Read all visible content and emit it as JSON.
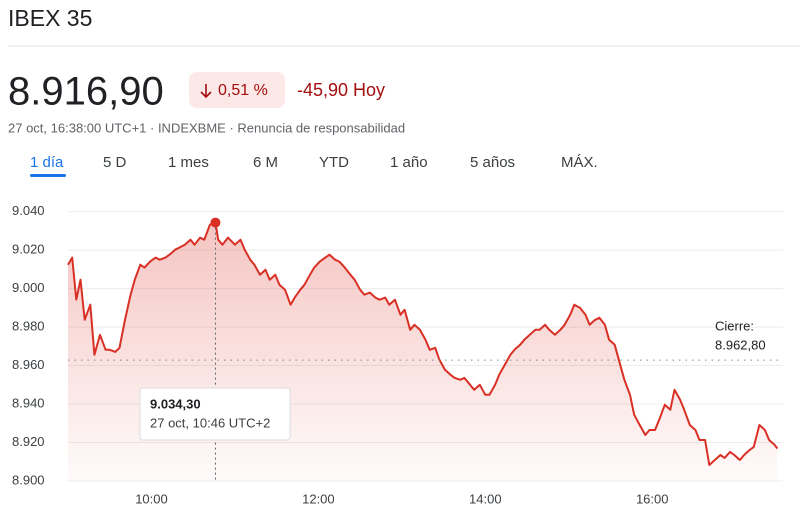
{
  "header": {
    "title": "IBEX 35",
    "price": "8.916,90",
    "change_pct": "0,51 %",
    "change_abs": "-45,90 Hoy",
    "subtitle": "27 oct, 16:38:00 UTC+1 · INDEXBME · Renuncia de responsabilidad"
  },
  "tabs": [
    "1 día",
    "5 D",
    "1 mes",
    "6 M",
    "YTD",
    "1 año",
    "5 años",
    "MÁX."
  ],
  "chart_data": {
    "type": "line",
    "x": [
      540,
      543,
      546,
      549,
      552,
      556,
      559,
      563,
      567,
      570,
      574,
      577,
      581,
      585,
      588,
      592,
      595,
      599,
      603,
      606,
      610,
      613,
      617,
      620,
      624,
      628,
      631,
      635,
      638,
      642,
      646,
      648,
      651,
      655,
      660,
      664,
      667,
      671,
      674,
      678,
      682,
      685,
      689,
      692,
      696,
      700,
      703,
      707,
      710,
      714,
      717,
      721,
      725,
      728,
      732,
      735,
      739,
      743,
      746,
      750,
      753,
      757,
      761,
      764,
      768,
      771,
      775,
      779,
      782,
      786,
      789,
      793,
      797,
      800,
      804,
      807,
      811,
      815,
      818,
      822,
      825,
      829,
      832,
      836,
      840,
      843,
      847,
      850,
      854,
      858,
      861,
      865,
      868,
      872,
      876,
      879,
      883,
      886,
      890,
      894,
      897,
      901,
      904,
      908,
      912,
      915,
      919,
      922,
      926,
      929,
      933,
      937,
      940,
      944,
      947,
      951,
      955,
      958,
      962,
      965,
      969,
      973,
      976,
      980,
      983,
      987,
      991,
      994,
      998,
      1001,
      1005,
      1009,
      1012,
      1016,
      1019,
      1023,
      1026,
      1030,
      1033,
      1037,
      1041,
      1044,
      1048,
      1050
    ],
    "series": [
      {
        "name": "IBEX 35",
        "color": "#d93025",
        "values": [
          9012.4,
          9016.1,
          8994.3,
          9004.6,
          8983.8,
          8991.6,
          8965.6,
          8976.0,
          8968.2,
          8968.2,
          8967.1,
          8969.2,
          8983.8,
          8996.8,
          9004.6,
          9012.4,
          9010.9,
          9014.0,
          9016.1,
          9015.0,
          9016.1,
          9017.6,
          9020.2,
          9021.3,
          9022.8,
          9025.4,
          9022.8,
          9026.5,
          9025.4,
          9033.2,
          9034.3,
          9025.4,
          9022.8,
          9026.5,
          9022.8,
          9025.4,
          9020.2,
          9015.0,
          9012.4,
          9007.2,
          9009.8,
          9004.6,
          9007.2,
          9002.0,
          8999.4,
          8991.6,
          8995.3,
          8999.4,
          9002.0,
          9007.2,
          9010.9,
          9014.0,
          9016.1,
          9017.6,
          9015.0,
          9014.0,
          9010.9,
          9007.2,
          9004.6,
          8999.4,
          8996.8,
          8997.9,
          8995.3,
          8994.2,
          8995.3,
          8991.6,
          8994.2,
          8986.4,
          8989.0,
          8978.6,
          8981.2,
          8978.6,
          8973.4,
          8968.2,
          8969.2,
          8963.0,
          8957.8,
          8955.2,
          8953.6,
          8952.6,
          8953.6,
          8950.0,
          8947.4,
          8950.0,
          8944.8,
          8944.8,
          8950.0,
          8955.2,
          8960.4,
          8965.6,
          8968.2,
          8970.8,
          8973.4,
          8976.0,
          8978.6,
          8978.6,
          8981.2,
          8978.6,
          8976.0,
          8978.6,
          8981.2,
          8986.4,
          8991.6,
          8990.0,
          8986.4,
          8981.2,
          8983.8,
          8984.8,
          8981.2,
          8973.4,
          8970.8,
          8960.4,
          8952.6,
          8944.8,
          8934.4,
          8929.1,
          8923.9,
          8926.5,
          8926.5,
          8931.8,
          8939.6,
          8937.0,
          8947.4,
          8942.2,
          8937.0,
          8929.1,
          8926.5,
          8921.3,
          8921.3,
          8908.3,
          8910.9,
          8913.5,
          8912.0,
          8915.1,
          8913.5,
          8910.9,
          8913.5,
          8916.1,
          8917.7,
          8929.1,
          8926.5,
          8921.3,
          8918.7,
          8916.9
        ]
      }
    ],
    "xlim": [
      540,
      1054
    ],
    "xticks": [
      {
        "value": 600,
        "label": "10:00"
      },
      {
        "value": 720,
        "label": "12:00"
      },
      {
        "value": 840,
        "label": "14:00"
      },
      {
        "value": 960,
        "label": "16:00"
      }
    ],
    "ylim": [
      8900,
      9045
    ],
    "yticks": [
      {
        "value": 8900,
        "label": "8.900"
      },
      {
        "value": 8920,
        "label": "8.920"
      },
      {
        "value": 8940,
        "label": "8.940"
      },
      {
        "value": 8960,
        "label": "8.960"
      },
      {
        "value": 8980,
        "label": "8.980"
      },
      {
        "value": 9000,
        "label": "9.000"
      },
      {
        "value": 9020,
        "label": "9.020"
      },
      {
        "value": 9040,
        "label": "9.040"
      }
    ],
    "grid": true,
    "reference": {
      "label": "Cierre:",
      "value": 8962.8,
      "value_label": "8.962,80"
    },
    "tooltip": {
      "x": 646,
      "value": 9034.3,
      "value_label": "9.034,30",
      "label": "27 oct, 10:46 UTC+2"
    }
  }
}
